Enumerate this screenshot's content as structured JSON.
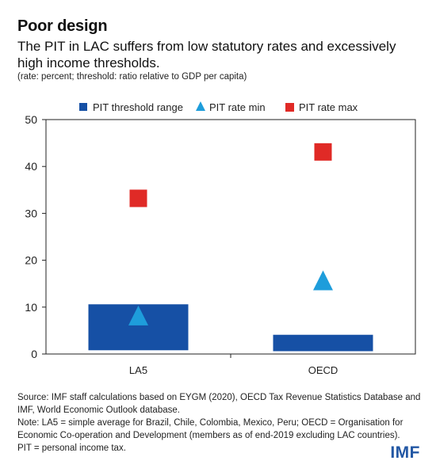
{
  "header": {
    "title": "Poor design",
    "subtitle": "The PIT in LAC suffers from low statutory rates and excessively high income thresholds.",
    "units_note": "(rate: percent; threshold: ratio relative to GDP per capita)"
  },
  "chart_data": {
    "type": "bar",
    "categories": [
      "LA5",
      "OECD"
    ],
    "ylim": [
      0,
      50
    ],
    "yticks": [
      0,
      10,
      20,
      30,
      40,
      50
    ],
    "grid": false,
    "legend_position": "top",
    "xlabel": "",
    "ylabel": "",
    "series": [
      {
        "name": "PIT threshold range",
        "marker": "floating-bar",
        "color": "#1650a5",
        "ranges": [
          [
            0.8,
            10.6
          ],
          [
            0.6,
            4.1
          ]
        ]
      },
      {
        "name": "PIT rate min",
        "marker": "triangle",
        "color": "#1e9ddb",
        "values": [
          8,
          15.5
        ]
      },
      {
        "name": "PIT rate max",
        "marker": "square",
        "color": "#e02a26",
        "values": [
          33.2,
          43.1
        ]
      }
    ]
  },
  "footer": {
    "source": "Source: IMF staff calculations based on EYGM (2020), OECD Tax Revenue Statistics Database and IMF, World Economic Outlook database.",
    "note": "Note: LA5 = simple average for Brazil, Chile, Colombia, Mexico, Peru; OECD = Organisation for Economic Co-operation and Development (members as of end-2019 excluding LAC countries).",
    "abbrev": "PIT = personal income tax."
  },
  "logo": {
    "text": "IMF"
  }
}
